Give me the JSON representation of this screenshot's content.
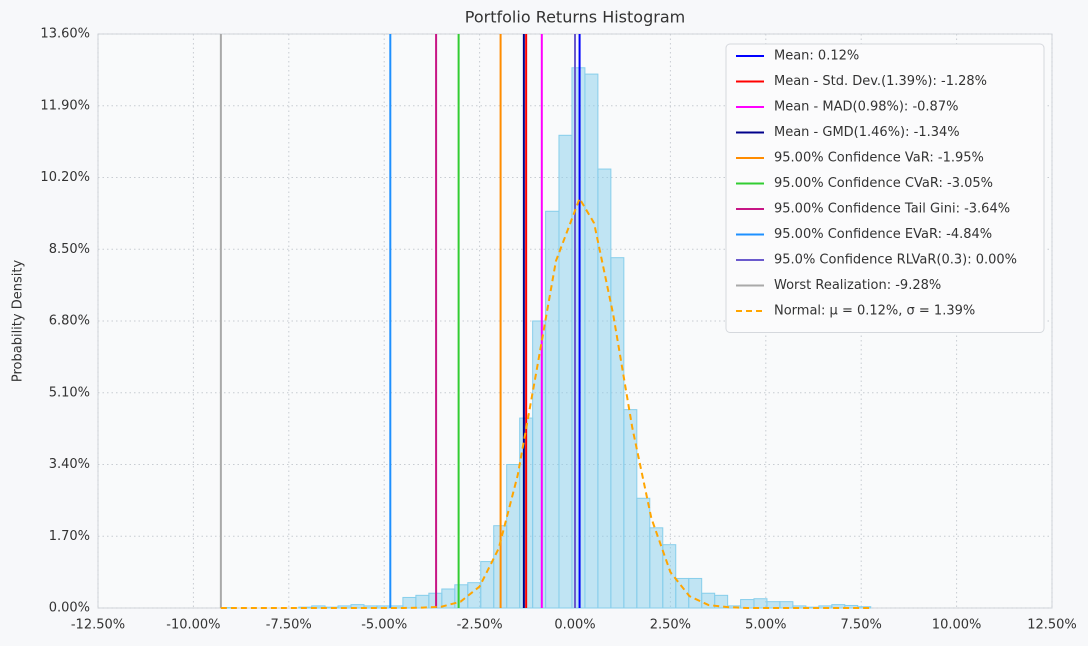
{
  "chart_data": {
    "type": "histogram",
    "title": "Portfolio Returns Histogram",
    "ylabel": "Probability Density",
    "color": "#87ceeb",
    "bins": [
      -9.28,
      -8.94,
      -8.6,
      -8.26,
      -7.92,
      -7.58,
      -7.24,
      -6.9,
      -6.55,
      -6.21,
      -5.87,
      -5.53,
      -5.19,
      -4.85,
      -4.51,
      -4.17,
      -3.83,
      -3.49,
      -3.15,
      -2.81,
      -2.47,
      -2.13,
      -1.79,
      -1.45,
      -1.11,
      -0.77,
      -0.42,
      -0.08,
      0.26,
      0.6,
      0.94,
      1.28,
      1.62,
      1.96,
      2.3,
      2.64,
      2.98,
      3.32,
      3.66,
      4.0,
      4.34,
      4.69,
      5.03,
      5.37,
      5.71,
      6.05,
      6.39,
      6.73,
      7.07,
      7.41,
      7.75
    ],
    "values": [
      0.01,
      0,
      0,
      0,
      0,
      0,
      0.02,
      0.05,
      0.02,
      0.05,
      0.08,
      0.05,
      0.05,
      0.05,
      0.25,
      0.3,
      0.35,
      0.45,
      0.55,
      0.6,
      1.1,
      1.95,
      3.4,
      4.5,
      6.8,
      9.4,
      11.2,
      12.8,
      12.65,
      10.4,
      8.3,
      4.7,
      2.6,
      1.9,
      1.5,
      0.7,
      0.7,
      0.35,
      0.3,
      0.05,
      0.2,
      0.22,
      0.15,
      0.15,
      0.05,
      0.02,
      0.05,
      0.08,
      0.06,
      0.03
    ],
    "xlim": [
      -12.5,
      12.5
    ],
    "ylim": [
      0,
      13.6
    ],
    "xticks": [
      {
        "value": -12.5,
        "label": "-12.50%"
      },
      {
        "value": -10,
        "label": "-10.00%"
      },
      {
        "value": -7.5,
        "label": "-7.50%"
      },
      {
        "value": -5,
        "label": "-5.00%"
      },
      {
        "value": -2.5,
        "label": "-2.50%"
      },
      {
        "value": 0,
        "label": "0.00%"
      },
      {
        "value": 2.5,
        "label": "2.50%"
      },
      {
        "value": 5,
        "label": "5.00%"
      },
      {
        "value": 7.5,
        "label": "7.50%"
      },
      {
        "value": 10,
        "label": "10.00%"
      },
      {
        "value": 12.5,
        "label": "12.50%"
      }
    ],
    "yticks": [
      {
        "value": 0,
        "label": "0.00%"
      },
      {
        "value": 1.7,
        "label": "1.70%"
      },
      {
        "value": 3.4,
        "label": "3.40%"
      },
      {
        "value": 5.1,
        "label": "5.10%"
      },
      {
        "value": 6.8,
        "label": "6.80%"
      },
      {
        "value": 8.5,
        "label": "8.50%"
      },
      {
        "value": 10.2,
        "label": "10.20%"
      },
      {
        "value": 11.9,
        "label": "11.90%"
      },
      {
        "value": 13.6,
        "label": "13.60%"
      }
    ],
    "grid": true,
    "legend": "upper right",
    "vlines": [
      {
        "name": "Mean: 0.12%",
        "value": 0.12,
        "color": "#0000ff"
      },
      {
        "name": "Mean - Std. Dev.(1.39%): -1.28%",
        "value": -1.28,
        "color": "#ff0000"
      },
      {
        "name": "Mean - MAD(0.98%): -0.87%",
        "value": -0.87,
        "color": "#ff00ff"
      },
      {
        "name": "Mean - GMD(1.46%): -1.34%",
        "value": -1.34,
        "color": "#00008b"
      },
      {
        "name": "95.00% Confidence VaR: -1.95%",
        "value": -1.95,
        "color": "#ff8c00"
      },
      {
        "name": "95.00% Confidence CVaR: -3.05%",
        "value": -3.05,
        "color": "#32cd32"
      },
      {
        "name": "95.00% Confidence Tail Gini: -3.64%",
        "value": -3.64,
        "color": "#c71585"
      },
      {
        "name": "95.00% Confidence EVaR: -4.84%",
        "value": -4.84,
        "color": "#1e90ff"
      },
      {
        "name": "95.0% Confidence RLVaR(0.3): 0.00%",
        "value": 0.0,
        "color": "#6a5acd"
      },
      {
        "name": "Worst Realization: -9.28%",
        "value": -9.28,
        "color": "#a9a9a9"
      }
    ],
    "normal": {
      "name": "Normal: μ = 0.12%, σ = 1.39%",
      "color": "#ffa500",
      "x": [
        -9.28,
        -6,
        -5,
        -4.5,
        -4,
        -3.5,
        -3,
        -2.5,
        -2,
        -1.5,
        -1,
        -0.5,
        0.12,
        0.5,
        1,
        1.5,
        2,
        2.5,
        3,
        3.5,
        4,
        4.5,
        5,
        6,
        7.75
      ],
      "y": [
        0,
        0,
        0,
        0,
        0.01,
        0.03,
        0.15,
        0.51,
        1.41,
        3.15,
        5.66,
        8.22,
        9.7,
        9.12,
        6.96,
        4.28,
        2.13,
        0.85,
        0.28,
        0.07,
        0.02,
        0,
        0,
        0,
        0
      ]
    }
  }
}
